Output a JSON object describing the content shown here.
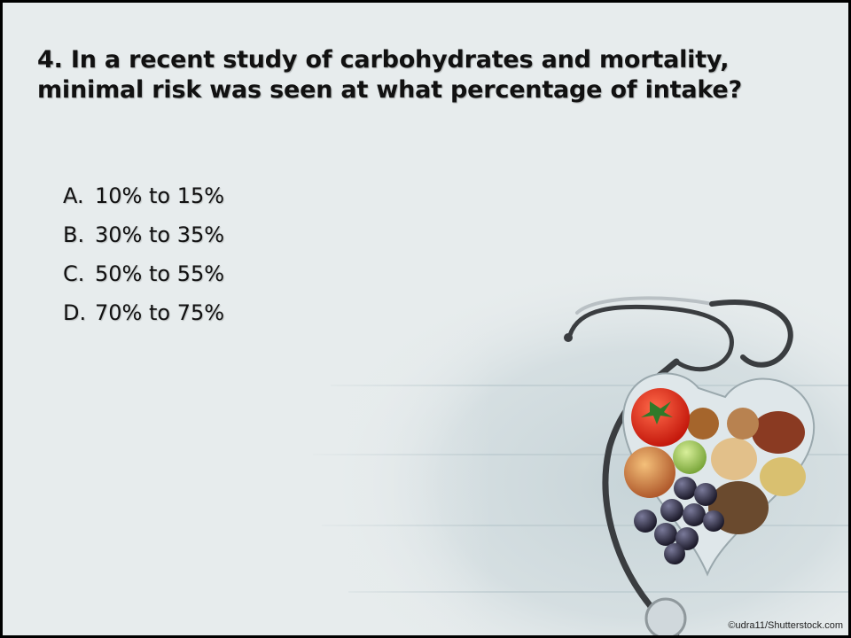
{
  "question": "4. In a recent study of carbohydrates and mortality, minimal risk was seen at what percentage of intake?",
  "answers": [
    {
      "letter": "A.",
      "text": "10% to 15%"
    },
    {
      "letter": "B.",
      "text": "30% to 35%"
    },
    {
      "letter": "C.",
      "text": "50% to 55%"
    },
    {
      "letter": "D.",
      "text": "70% to 75%"
    }
  ],
  "image": {
    "description_icon": "stethoscope-heart-food-icon",
    "credit": "©udra11/Shutterstock.com"
  },
  "colors": {
    "background": "#e7eced",
    "text": "#111111",
    "wood": "#c9d6da",
    "stethoscope": "#3a3d40"
  }
}
